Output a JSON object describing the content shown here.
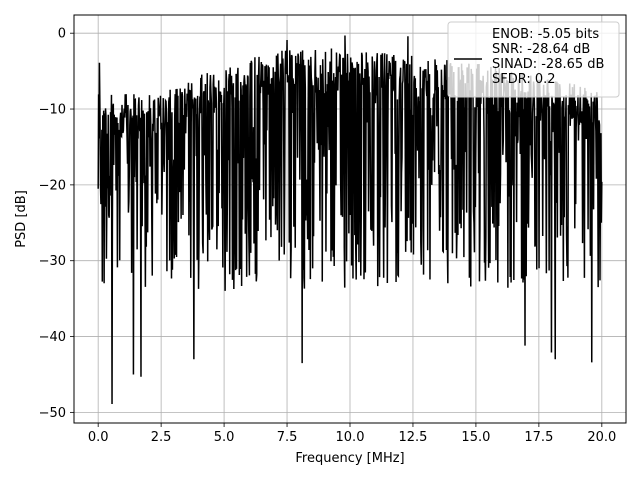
{
  "chart_data": {
    "type": "line",
    "title": "",
    "xlabel": "Frequency [MHz]",
    "ylabel": "PSD [dB]",
    "xlim": [
      -0.96,
      20.96
    ],
    "ylim": [
      -51.4,
      2.4
    ],
    "x_ticks": [
      0.0,
      2.5,
      5.0,
      7.5,
      10.0,
      12.5,
      15.0,
      17.5,
      20.0
    ],
    "x_tick_labels": [
      "0.0",
      "2.5",
      "5.0",
      "7.5",
      "10.0",
      "12.5",
      "15.0",
      "17.5",
      "20.0"
    ],
    "y_ticks": [
      0,
      -10,
      -20,
      -30,
      -40,
      -50
    ],
    "y_tick_labels": [
      "0",
      "−10",
      "−20",
      "−30",
      "−40",
      "−50"
    ],
    "grid": true,
    "legend_position": "top-right",
    "series": [
      {
        "name": "ENOB: -5.05 bits\nSNR: -28.64 dB\nSINAD: -28.65 dB\nSFDR: 0.2",
        "color": "#000000",
        "x_range": [
          0.0,
          20.0
        ],
        "approx_points": 1100,
        "mean_level_db": -18,
        "spread_db": [
          -26,
          -10
        ],
        "upper_envelope_db": [
          [
            0,
            -8
          ],
          [
            2.5,
            -8
          ],
          [
            5,
            -4
          ],
          [
            7.5,
            -2
          ],
          [
            10,
            -2
          ],
          [
            12.5,
            -3
          ],
          [
            15,
            -4
          ],
          [
            17.5,
            -5
          ],
          [
            20,
            -8
          ]
        ],
        "peaks": [
          {
            "x": 0.05,
            "y": -3.9
          },
          {
            "x": 9.8,
            "y": -0.3
          },
          {
            "x": 12.3,
            "y": -0.4
          },
          {
            "x": 7.5,
            "y": -0.9
          }
        ],
        "troughs": [
          {
            "x": 0.55,
            "y": -48.9
          },
          {
            "x": 1.7,
            "y": -45.3
          },
          {
            "x": 1.4,
            "y": -45.0
          },
          {
            "x": 3.8,
            "y": -43.0
          },
          {
            "x": 8.1,
            "y": -43.5
          },
          {
            "x": 16.95,
            "y": -41.2
          },
          {
            "x": 18.15,
            "y": -43.0
          },
          {
            "x": 19.6,
            "y": -43.4
          },
          {
            "x": 18.0,
            "y": -42.1
          }
        ]
      }
    ]
  }
}
